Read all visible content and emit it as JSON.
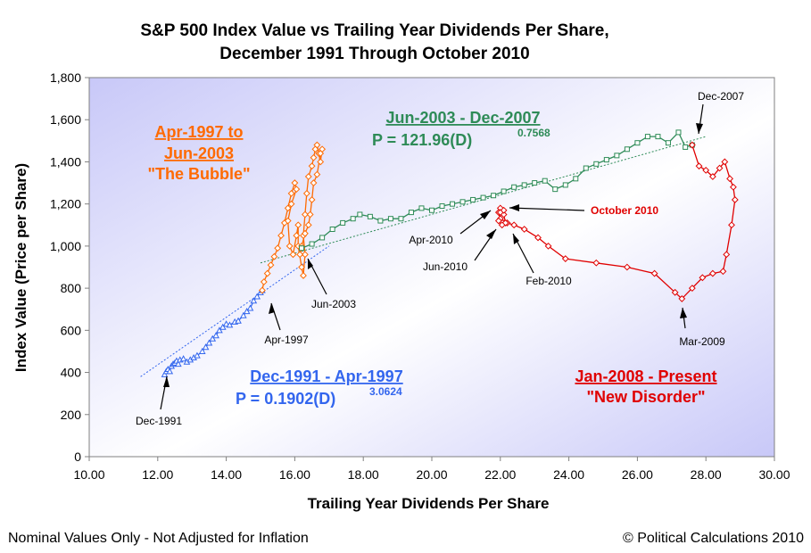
{
  "colors": {
    "blue": "#3366ee",
    "orange": "#ff6a00",
    "green": "#2e8b57",
    "red": "#e00000",
    "plot_bg_start": "#ffffff",
    "plot_bg_end": "#c8c8f8"
  },
  "footer": {
    "left": "Nominal Values Only - Not Adjusted for Inflation",
    "right": "© Political Calculations 2010"
  },
  "periods": {
    "bubble": {
      "line1": "Apr-1997 to",
      "line2": "Jun-2003",
      "line3": "\"The Bubble\""
    },
    "growth2": {
      "line1": "Jun-2003 - Dec-2007",
      "formula": "P = 121.96(D)",
      "exponent": "0.7568"
    },
    "growth1": {
      "line1": "Dec-1991 - Apr-1997",
      "formula": "P = 0.1902(D)",
      "exponent": "3.0624"
    },
    "disorder": {
      "line1": "Jan-2008 - Present",
      "line2": "\"New Disorder\""
    }
  },
  "annotations": {
    "dec1991": "Dec-1991",
    "apr1997": "Apr-1997",
    "jun2003": "Jun-2003",
    "dec2007": "Dec-2007",
    "mar2009": "Mar-2009",
    "apr2010": "Apr-2010",
    "jun2010": "Jun-2010",
    "feb2010": "Feb-2010",
    "oct2010": "October 2010"
  },
  "chart_data": {
    "type": "scatter",
    "title": "S&P 500 Index Value vs Trailing Year Dividends Per Share, December 1991 Through October 2010",
    "title_lines": [
      "S&P 500 Index Value vs Trailing Year Dividends Per Share,",
      "December 1991 Through October 2010"
    ],
    "xlabel": "Trailing Year Dividends Per Share",
    "ylabel": "Index Value (Price per Share)",
    "xlim": [
      10,
      30
    ],
    "ylim": [
      0,
      1800
    ],
    "x_ticks": [
      "10.00",
      "12.00",
      "14.00",
      "16.00",
      "18.00",
      "20.00",
      "22.00",
      "24.00",
      "26.00",
      "28.00",
      "30.00"
    ],
    "y_ticks": [
      "0",
      "200",
      "400",
      "600",
      "800",
      "1,000",
      "1,200",
      "1,400",
      "1,600",
      "1,800"
    ],
    "grid": false,
    "series": [
      {
        "color": "#3366ee",
        "marker": "triangle",
        "points": [
          [
            12.2,
            390
          ],
          [
            12.25,
            405
          ],
          [
            12.3,
            415
          ],
          [
            12.35,
            405
          ],
          [
            12.4,
            430
          ],
          [
            12.45,
            440
          ],
          [
            12.5,
            445
          ],
          [
            12.55,
            455
          ],
          [
            12.6,
            440
          ],
          [
            12.65,
            460
          ],
          [
            12.75,
            465
          ],
          [
            12.85,
            450
          ],
          [
            12.95,
            460
          ],
          [
            13.05,
            470
          ],
          [
            13.15,
            480
          ],
          [
            13.3,
            500
          ],
          [
            13.4,
            520
          ],
          [
            13.5,
            540
          ],
          [
            13.6,
            560
          ],
          [
            13.7,
            575
          ],
          [
            13.8,
            600
          ],
          [
            13.9,
            615
          ],
          [
            14.0,
            630
          ],
          [
            14.1,
            625
          ],
          [
            14.25,
            640
          ],
          [
            14.35,
            645
          ],
          [
            14.5,
            670
          ],
          [
            14.6,
            690
          ],
          [
            14.7,
            705
          ],
          [
            14.8,
            740
          ],
          [
            14.9,
            760
          ],
          [
            15.0,
            780
          ],
          [
            15.05,
            790
          ]
        ]
      },
      {
        "color": "#ff6a00",
        "marker": "diamond",
        "points": [
          [
            15.05,
            790
          ],
          [
            15.1,
            830
          ],
          [
            15.2,
            870
          ],
          [
            15.3,
            910
          ],
          [
            15.4,
            950
          ],
          [
            15.5,
            990
          ],
          [
            15.6,
            1050
          ],
          [
            15.7,
            1110
          ],
          [
            15.8,
            1180
          ],
          [
            15.9,
            1250
          ],
          [
            16.0,
            1300
          ],
          [
            16.05,
            1270
          ],
          [
            15.9,
            1200
          ],
          [
            15.8,
            1120
          ],
          [
            15.85,
            1000
          ],
          [
            15.95,
            960
          ],
          [
            16.05,
            1050
          ],
          [
            16.1,
            1100
          ],
          [
            16.1,
            1000
          ],
          [
            16.2,
            900
          ],
          [
            16.25,
            860
          ],
          [
            16.3,
            960
          ],
          [
            16.25,
            1050
          ],
          [
            16.3,
            1150
          ],
          [
            16.35,
            1250
          ],
          [
            16.4,
            1330
          ],
          [
            16.5,
            1380
          ],
          [
            16.55,
            1420
          ],
          [
            16.6,
            1460
          ],
          [
            16.65,
            1480
          ],
          [
            16.7,
            1440
          ],
          [
            16.75,
            1400
          ],
          [
            16.8,
            1460
          ],
          [
            16.75,
            1440
          ],
          [
            16.65,
            1340
          ],
          [
            16.55,
            1300
          ],
          [
            16.5,
            1220
          ],
          [
            16.45,
            1150
          ],
          [
            16.4,
            1100
          ],
          [
            16.3,
            1060
          ],
          [
            16.2,
            1000
          ],
          [
            16.15,
            960
          ],
          [
            16.2,
            990
          ]
        ]
      },
      {
        "color": "#2e8b57",
        "marker": "square",
        "points": [
          [
            16.2,
            990
          ],
          [
            16.5,
            1010
          ],
          [
            16.8,
            1040
          ],
          [
            17.1,
            1080
          ],
          [
            17.4,
            1110
          ],
          [
            17.7,
            1130
          ],
          [
            17.9,
            1150
          ],
          [
            18.2,
            1140
          ],
          [
            18.5,
            1120
          ],
          [
            18.8,
            1130
          ],
          [
            19.1,
            1130
          ],
          [
            19.4,
            1160
          ],
          [
            19.7,
            1180
          ],
          [
            20.0,
            1170
          ],
          [
            20.3,
            1190
          ],
          [
            20.6,
            1200
          ],
          [
            20.9,
            1210
          ],
          [
            21.2,
            1220
          ],
          [
            21.5,
            1230
          ],
          [
            21.8,
            1240
          ],
          [
            22.1,
            1260
          ],
          [
            22.4,
            1280
          ],
          [
            22.7,
            1290
          ],
          [
            23.0,
            1300
          ],
          [
            23.3,
            1310
          ],
          [
            23.6,
            1270
          ],
          [
            23.9,
            1290
          ],
          [
            24.2,
            1320
          ],
          [
            24.5,
            1370
          ],
          [
            24.8,
            1390
          ],
          [
            25.1,
            1410
          ],
          [
            25.4,
            1430
          ],
          [
            25.7,
            1460
          ],
          [
            26.0,
            1490
          ],
          [
            26.3,
            1520
          ],
          [
            26.6,
            1520
          ],
          [
            26.9,
            1490
          ],
          [
            27.2,
            1540
          ],
          [
            27.4,
            1470
          ],
          [
            27.6,
            1480
          ]
        ]
      },
      {
        "color": "#e00000",
        "marker": "diamond",
        "points": [
          [
            27.6,
            1480
          ],
          [
            27.8,
            1380
          ],
          [
            28.0,
            1360
          ],
          [
            28.2,
            1330
          ],
          [
            28.4,
            1370
          ],
          [
            28.55,
            1400
          ],
          [
            28.7,
            1320
          ],
          [
            28.8,
            1280
          ],
          [
            28.85,
            1220
          ],
          [
            28.75,
            1100
          ],
          [
            28.6,
            960
          ],
          [
            28.5,
            880
          ],
          [
            28.2,
            870
          ],
          [
            27.9,
            850
          ],
          [
            27.6,
            800
          ],
          [
            27.3,
            750
          ],
          [
            27.1,
            780
          ],
          [
            26.5,
            870
          ],
          [
            25.7,
            900
          ],
          [
            24.8,
            920
          ],
          [
            23.9,
            940
          ],
          [
            23.4,
            1000
          ],
          [
            23.1,
            1040
          ],
          [
            22.7,
            1080
          ],
          [
            22.4,
            1100
          ],
          [
            22.2,
            1110
          ],
          [
            22.0,
            1130
          ],
          [
            21.95,
            1160
          ],
          [
            22.0,
            1180
          ],
          [
            22.1,
            1150
          ],
          [
            22.15,
            1110
          ],
          [
            22.05,
            1100
          ],
          [
            21.95,
            1120
          ],
          [
            22.0,
            1160
          ],
          [
            22.1,
            1170
          ]
        ]
      }
    ],
    "trendlines": [
      {
        "color": "#3366ee",
        "from": [
          11.5,
          380
        ],
        "to": [
          17.0,
          1000
        ]
      },
      {
        "color": "#2e8b57",
        "from": [
          15.0,
          920
        ],
        "to": [
          28.0,
          1520
        ]
      }
    ]
  }
}
